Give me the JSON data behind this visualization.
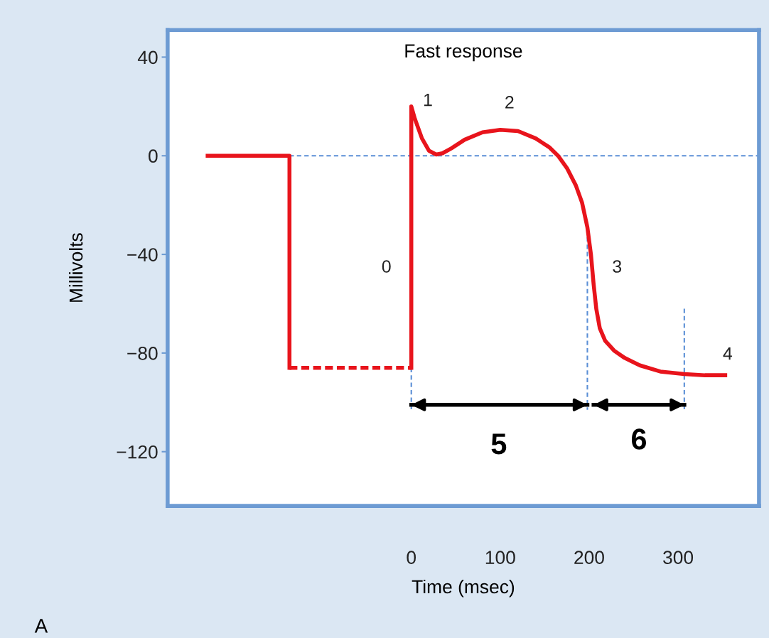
{
  "chart_data": {
    "type": "line",
    "title": "Fast response",
    "xlabel": "Time (msec)",
    "ylabel": "Millivolts",
    "xlim": [
      -274,
      391
    ],
    "ylim": [
      -142,
      51
    ],
    "xticks": [
      0,
      100,
      200,
      300
    ],
    "yticks": [
      40,
      0,
      {
        "value": -40,
        "label": "−40"
      },
      {
        "value": -80,
        "label": "−80"
      },
      {
        "value": -120,
        "label": "−120"
      }
    ],
    "grid": false,
    "legend": false,
    "series": [
      {
        "color": "#5b8fd6",
        "line_style": "dashed",
        "x": [
          -137,
          391
        ],
        "values": [
          0,
          0
        ]
      },
      {
        "color": "#5b8fd6",
        "line_style": "dashed",
        "x": [
          0,
          0
        ],
        "values": [
          -86,
          -103
        ]
      },
      {
        "color": "#5b8fd6",
        "line_style": "dashed",
        "x": [
          198,
          198
        ],
        "values": [
          -33,
          -103
        ]
      },
      {
        "color": "#5b8fd6",
        "line_style": "dashed",
        "x": [
          307,
          307
        ],
        "values": [
          -62,
          -103
        ]
      },
      {
        "color": "#e8141c",
        "line_style": "solid",
        "x": [
          -229,
          -137,
          -137
        ],
        "values": [
          0,
          0,
          -86
        ]
      },
      {
        "color": "#e8141c",
        "line_style": "dashed",
        "x": [
          -137,
          0
        ],
        "values": [
          -86,
          -86
        ]
      },
      {
        "color": "#e8141c",
        "line_style": "solid",
        "x": [
          0,
          0,
          4,
          12,
          20,
          28,
          35,
          45,
          60,
          80,
          100,
          120,
          140,
          155,
          165,
          175,
          185,
          192,
          198,
          202,
          205,
          208,
          212,
          218,
          228,
          240,
          257,
          280,
          307,
          330,
          353
        ],
        "values": [
          -86,
          20,
          15,
          7,
          2,
          0.5,
          1,
          3,
          6.5,
          9.5,
          10.5,
          10,
          7,
          3.5,
          0,
          -5,
          -12,
          -19,
          -29,
          -40,
          -52,
          -62,
          -70,
          -75,
          -79,
          -82,
          -85,
          -87.5,
          -88.5,
          -89,
          -89
        ]
      },
      {
        "color": "#000000",
        "line_style": "solid",
        "x": [
          0,
          198
        ],
        "values": [
          -101,
          -101
        ]
      },
      {
        "color": "#000000",
        "line_style": "solid",
        "x": [
          205,
          307
        ],
        "values": [
          -101,
          -101
        ]
      }
    ],
    "annotations": [
      "0",
      "1",
      "2",
      "3",
      "4",
      "5",
      "6",
      "A"
    ]
  }
}
